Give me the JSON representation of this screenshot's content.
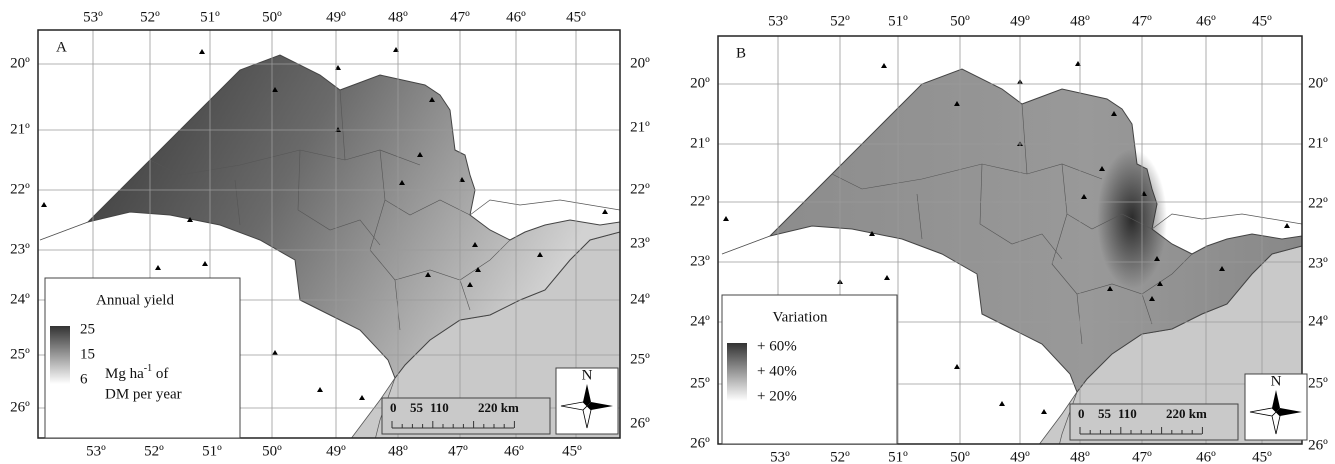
{
  "panels": [
    {
      "label": "A",
      "top_ticks": [
        "53º",
        "52º",
        "51º",
        "50º",
        "49º",
        "48º",
        "47º",
        "46º",
        "45º"
      ],
      "bottom_ticks": [
        "53º",
        "52º",
        "51º",
        "50º",
        "49º",
        "48º",
        "47º",
        "46º",
        "45º"
      ],
      "left_ticks": [
        "20º",
        "21º",
        "22º",
        "23º",
        "24º",
        "25º",
        "26º"
      ],
      "right_ticks": [
        "20º",
        "21º",
        "22º",
        "23º",
        "24º",
        "25º",
        "26º"
      ],
      "legend": {
        "title": "Annual yield",
        "levels": [
          "25",
          "15",
          "6"
        ],
        "unit": {
          "base": "Mg ha",
          "exponent": "-1",
          "rest": " of",
          "line2": "DM per year"
        }
      },
      "scale_bar": [
        "0",
        "55",
        "110",
        "220 km"
      ],
      "north": "N"
    },
    {
      "label": "B",
      "top_ticks": [
        "53º",
        "52º",
        "51º",
        "50º",
        "49º",
        "48º",
        "47º",
        "46º",
        "45º"
      ],
      "bottom_ticks": [
        "53º",
        "52º",
        "51º",
        "50º",
        "49º",
        "48º",
        "47º",
        "46º",
        "45º"
      ],
      "left_ticks": [
        "20º",
        "21º",
        "22º",
        "23º",
        "24º",
        "25º",
        "26º"
      ],
      "right_ticks": [
        "20º",
        "21º",
        "22º",
        "23º",
        "24º",
        "25º",
        "26º"
      ],
      "legend": {
        "title": "Variation",
        "levels": [
          "+ 60%",
          "+ 40%",
          "+ 20%"
        ]
      },
      "scale_bar": [
        "0",
        "55",
        "110",
        "220 km"
      ],
      "north": "N"
    }
  ]
}
